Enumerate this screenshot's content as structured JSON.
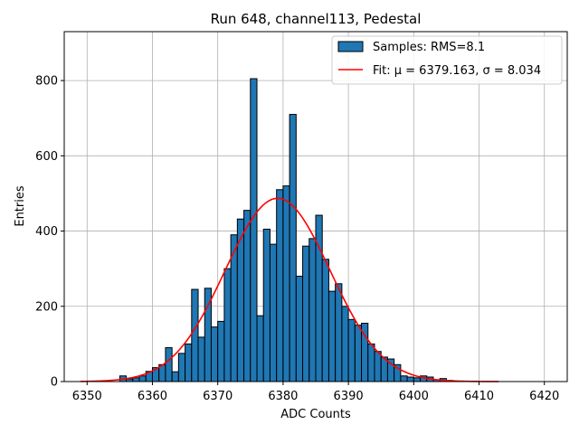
{
  "chart_data": {
    "type": "bar",
    "title": "Run 648, channel113, Pedestal",
    "xlabel": "ADC Counts",
    "ylabel": "Entries",
    "xlim": [
      6346.5,
      6423.5
    ],
    "ylim": [
      0,
      930
    ],
    "xticks": [
      6350,
      6360,
      6370,
      6380,
      6390,
      6400,
      6410,
      6420
    ],
    "yticks": [
      0,
      200,
      400,
      600,
      800
    ],
    "grid": true,
    "legend_position": "top-right",
    "histogram": {
      "name": "Samples: RMS=8.1",
      "color": "#1f77b4",
      "edgecolor": "#000000",
      "bin_starts": [
        6349,
        6350,
        6351,
        6352,
        6353,
        6354,
        6355,
        6356,
        6357,
        6358,
        6359,
        6360,
        6361,
        6362,
        6363,
        6364,
        6365,
        6366,
        6367,
        6368,
        6369,
        6370,
        6371,
        6372,
        6373,
        6374,
        6375,
        6376,
        6377,
        6378,
        6379,
        6380,
        6381,
        6382,
        6383,
        6384,
        6385,
        6386,
        6387,
        6388,
        6389,
        6390,
        6391,
        6392,
        6393,
        6394,
        6395,
        6396,
        6397,
        6398,
        6399,
        6400,
        6401,
        6402,
        6403,
        6404,
        6405,
        6406,
        6407,
        6408,
        6409,
        6410,
        6411,
        6412
      ],
      "bin_width": 1,
      "counts": [
        0,
        0,
        0,
        0,
        0,
        0,
        15,
        7,
        10,
        15,
        27,
        37,
        45,
        90,
        26,
        75,
        100,
        245,
        118,
        248,
        145,
        160,
        300,
        390,
        432,
        455,
        805,
        175,
        405,
        365,
        510,
        520,
        710,
        280,
        360,
        380,
        442,
        325,
        240,
        260,
        200,
        165,
        150,
        155,
        100,
        80,
        65,
        60,
        45,
        15,
        12,
        10,
        15,
        12,
        5,
        8,
        3,
        0,
        0,
        0,
        0,
        0,
        0,
        0
      ]
    },
    "fit": {
      "name": "Fit: μ = 6379.163, σ = 8.034",
      "mu": 6379.163,
      "sigma": 8.034,
      "amplitude": 487,
      "x_range": [
        6349,
        6413
      ],
      "color": "#ff0000"
    }
  }
}
